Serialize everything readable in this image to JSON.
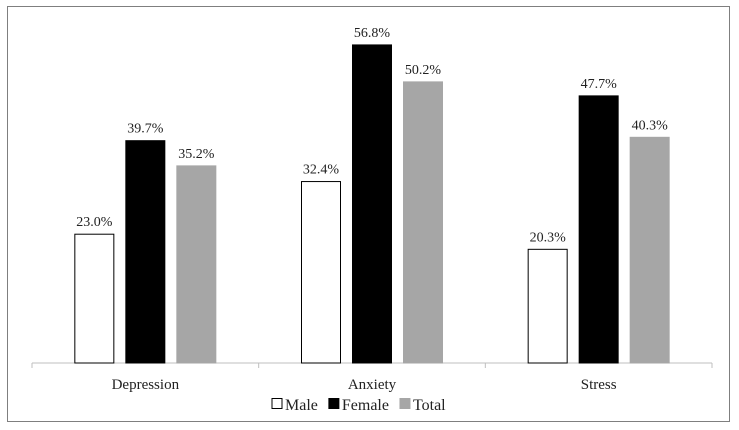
{
  "chart_data": {
    "type": "bar",
    "categories": [
      "Depression",
      "Anxiety",
      "Stress"
    ],
    "series": [
      {
        "name": "Male",
        "values": [
          23.0,
          32.4,
          20.3
        ],
        "labels": [
          "23.0%",
          "32.4%",
          "20.3%"
        ],
        "color": "#ffffff",
        "stroke": "#000000"
      },
      {
        "name": "Female",
        "values": [
          39.7,
          56.8,
          47.7
        ],
        "labels": [
          "39.7%",
          "56.8%",
          "47.7%"
        ],
        "color": "#000000",
        "stroke": "#000000"
      },
      {
        "name": "Total",
        "values": [
          35.2,
          50.2,
          40.3
        ],
        "labels": [
          "35.2%",
          "50.2%",
          "40.3%"
        ],
        "color": "#a6a6a6",
        "stroke": "#a6a6a6"
      }
    ],
    "title": "",
    "xlabel": "",
    "ylabel": "",
    "ylim": [
      0,
      60
    ],
    "grid": false,
    "legend_position": "bottom"
  }
}
